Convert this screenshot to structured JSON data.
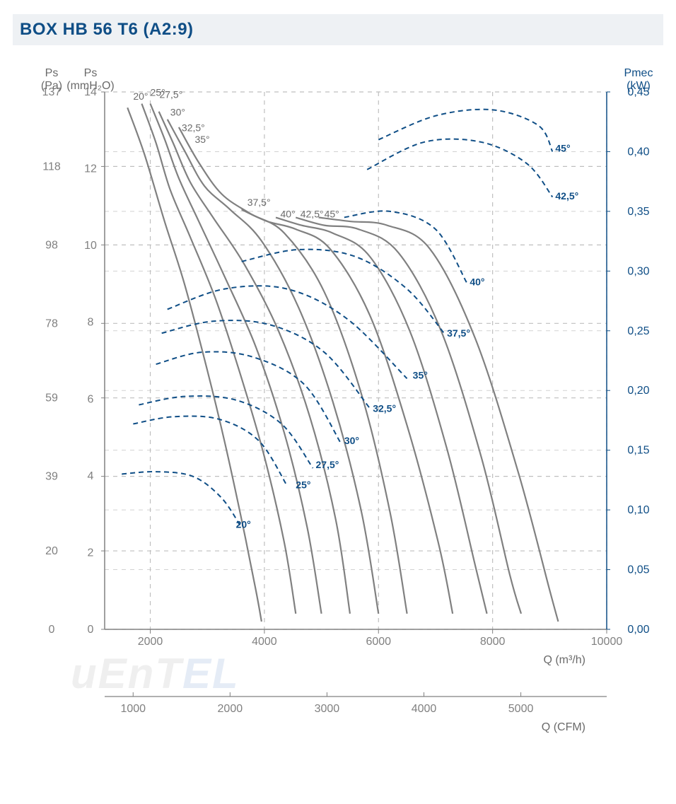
{
  "title": "BOX HB 56 T6 (A2:9)",
  "watermark_text": "uEnTEL",
  "chart": {
    "type": "line",
    "background_color": "#ffffff",
    "grid_color": "#bfbfbf",
    "grid_dash": "6 6",
    "curve_color": "#808080",
    "curve_width": 2.2,
    "power_color": "#0f4e86",
    "power_dash": "7 5",
    "power_width": 2.0,
    "axis_label_color": "#6a6a6a",
    "axis_label_color_blue": "#0f4e86",
    "tick_font_size": 16,
    "series_label_font_size": 14,
    "x": {
      "unit_main": "Q (m³/h)",
      "unit_secondary": "Q (CFM)",
      "min": 1200,
      "max": 10000,
      "ticks_main": [
        2000,
        4000,
        6000,
        8000,
        10000
      ],
      "ticks_cfm": [
        1000,
        2000,
        3000,
        4000,
        5000
      ]
    },
    "y_left_pa": {
      "label_top": "Ps",
      "label_bottom": "(Pa)",
      "min": 0,
      "max": 137,
      "ticks": [
        0,
        20,
        39,
        59,
        78,
        98,
        118,
        137
      ]
    },
    "y_left_mm": {
      "label_top": "Ps",
      "label_bottom": "(mmH₂O)",
      "min": 0,
      "max": 14,
      "ticks": [
        0,
        2,
        4,
        6,
        8,
        10,
        12,
        14
      ]
    },
    "y_right": {
      "label_top": "Pmec",
      "label_bottom": "(kW)",
      "min": 0,
      "max": 0.45,
      "ticks": [
        0.0,
        0.05,
        0.1,
        0.15,
        0.2,
        0.25,
        0.3,
        0.35,
        0.4,
        0.45
      ]
    },
    "pressure_series": [
      {
        "label": "20°",
        "label_pos": [
          1700,
          135
        ],
        "points": [
          [
            1600,
            133
          ],
          [
            1900,
            121
          ],
          [
            2250,
            104
          ],
          [
            2600,
            88
          ],
          [
            3000,
            66
          ],
          [
            3300,
            48
          ],
          [
            3600,
            28
          ],
          [
            3850,
            10
          ],
          [
            3950,
            2
          ]
        ]
      },
      {
        "label": "25°",
        "label_pos": [
          2000,
          136
        ],
        "points": [
          [
            1850,
            134
          ],
          [
            2100,
            124
          ],
          [
            2350,
            112
          ],
          [
            2700,
            100
          ],
          [
            3150,
            84
          ],
          [
            3600,
            64
          ],
          [
            4000,
            44
          ],
          [
            4350,
            22
          ],
          [
            4550,
            4
          ]
        ]
      },
      {
        "label": "27,5°",
        "label_pos": [
          2160,
          135.5
        ],
        "points": [
          [
            2000,
            134
          ],
          [
            2250,
            125
          ],
          [
            2500,
            115
          ],
          [
            2850,
            104
          ],
          [
            3300,
            90
          ],
          [
            3850,
            72
          ],
          [
            4350,
            50
          ],
          [
            4750,
            26
          ],
          [
            5000,
            4
          ]
        ]
      },
      {
        "label": "30°",
        "label_pos": [
          2350,
          131
        ],
        "points": [
          [
            2150,
            132
          ],
          [
            2400,
            124
          ],
          [
            2700,
            114
          ],
          [
            3100,
            105
          ],
          [
            3650,
            93
          ],
          [
            4250,
            76
          ],
          [
            4800,
            54
          ],
          [
            5250,
            28
          ],
          [
            5500,
            4
          ]
        ]
      },
      {
        "label": "32,5°",
        "label_pos": [
          2550,
          127
        ],
        "points": [
          [
            2300,
            130
          ],
          [
            2600,
            122
          ],
          [
            2950,
            113
          ],
          [
            3400,
            107
          ],
          [
            3950,
            99
          ],
          [
            4600,
            82
          ],
          [
            5200,
            58
          ],
          [
            5700,
            30
          ],
          [
            6000,
            4
          ]
        ]
      },
      {
        "label": "35°",
        "label_pos": [
          2780,
          124
        ],
        "points": [
          [
            2500,
            128
          ],
          [
            2850,
            119
          ],
          [
            3250,
            111
          ],
          [
            3750,
            106
          ],
          [
            4350,
            101
          ],
          [
            5050,
            86
          ],
          [
            5700,
            60
          ],
          [
            6200,
            30
          ],
          [
            6500,
            4
          ]
        ]
      },
      {
        "label": "37,5°",
        "label_pos": [
          3700,
          108
        ],
        "points": [
          [
            3600,
            107
          ],
          [
            4050,
            104
          ],
          [
            4550,
            102
          ],
          [
            5150,
            97
          ],
          [
            5850,
            80
          ],
          [
            6500,
            52
          ],
          [
            7050,
            22
          ],
          [
            7300,
            4
          ]
        ]
      },
      {
        "label": "40°",
        "label_pos": [
          4280,
          105
        ],
        "points": [
          [
            4200,
            105
          ],
          [
            4650,
            103
          ],
          [
            5200,
            101
          ],
          [
            5850,
            95
          ],
          [
            6550,
            76
          ],
          [
            7200,
            46
          ],
          [
            7700,
            16
          ],
          [
            7900,
            4
          ]
        ]
      },
      {
        "label": "42,5°",
        "label_pos": [
          4630,
          105
        ],
        "points": [
          [
            4550,
            105
          ],
          [
            5050,
            103
          ],
          [
            5650,
            102
          ],
          [
            6350,
            96
          ],
          [
            7100,
            76
          ],
          [
            7800,
            44
          ],
          [
            8300,
            14
          ],
          [
            8500,
            4
          ]
        ]
      },
      {
        "label": "45°",
        "label_pos": [
          5050,
          105
        ],
        "points": [
          [
            4950,
            105
          ],
          [
            5500,
            104
          ],
          [
            6150,
            103
          ],
          [
            6900,
            97
          ],
          [
            7700,
            74
          ],
          [
            8450,
            40
          ],
          [
            9000,
            10
          ],
          [
            9150,
            2
          ]
        ]
      }
    ],
    "power_series": [
      {
        "label": "20°",
        "label_pos": [
          3500,
          0.085
        ],
        "points": [
          [
            1500,
            0.13
          ],
          [
            2100,
            0.132
          ],
          [
            2750,
            0.128
          ],
          [
            3250,
            0.11
          ],
          [
            3600,
            0.085
          ]
        ]
      },
      {
        "label": "25°",
        "label_pos": [
          4550,
          0.118
        ],
        "points": [
          [
            1700,
            0.172
          ],
          [
            2400,
            0.178
          ],
          [
            3200,
            0.176
          ],
          [
            3900,
            0.158
          ],
          [
            4400,
            0.12
          ]
        ]
      },
      {
        "label": "27,5°",
        "label_pos": [
          4900,
          0.135
        ],
        "points": [
          [
            1800,
            0.188
          ],
          [
            2600,
            0.195
          ],
          [
            3500,
            0.192
          ],
          [
            4300,
            0.172
          ],
          [
            4850,
            0.135
          ]
        ]
      },
      {
        "label": "30°",
        "label_pos": [
          5400,
          0.155
        ],
        "points": [
          [
            2100,
            0.222
          ],
          [
            2900,
            0.232
          ],
          [
            3800,
            0.228
          ],
          [
            4700,
            0.205
          ],
          [
            5350,
            0.155
          ]
        ]
      },
      {
        "label": "32,5°",
        "label_pos": [
          5900,
          0.182
        ],
        "points": [
          [
            2200,
            0.248
          ],
          [
            3100,
            0.258
          ],
          [
            4100,
            0.255
          ],
          [
            5050,
            0.232
          ],
          [
            5850,
            0.185
          ]
        ]
      },
      {
        "label": "35°",
        "label_pos": [
          6600,
          0.21
        ],
        "points": [
          [
            2300,
            0.268
          ],
          [
            3300,
            0.285
          ],
          [
            4400,
            0.285
          ],
          [
            5450,
            0.26
          ],
          [
            6500,
            0.21
          ]
        ]
      },
      {
        "label": "37,5°",
        "label_pos": [
          7200,
          0.245
        ],
        "points": [
          [
            3600,
            0.308
          ],
          [
            4600,
            0.318
          ],
          [
            5600,
            0.312
          ],
          [
            6500,
            0.285
          ],
          [
            7150,
            0.248
          ]
        ]
      },
      {
        "label": "40°",
        "label_pos": [
          7600,
          0.288
        ],
        "points": [
          [
            5400,
            0.345
          ],
          [
            6200,
            0.35
          ],
          [
            7000,
            0.335
          ],
          [
            7550,
            0.29
          ]
        ]
      },
      {
        "label": "42,5°",
        "label_pos": [
          9100,
          0.36
        ],
        "points": [
          [
            5800,
            0.385
          ],
          [
            6800,
            0.408
          ],
          [
            7800,
            0.408
          ],
          [
            8600,
            0.39
          ],
          [
            9050,
            0.362
          ]
        ]
      },
      {
        "label": "45°",
        "label_pos": [
          9100,
          0.4
        ],
        "points": [
          [
            6000,
            0.41
          ],
          [
            7000,
            0.43
          ],
          [
            8000,
            0.435
          ],
          [
            8800,
            0.422
          ],
          [
            9050,
            0.4
          ]
        ]
      }
    ]
  }
}
